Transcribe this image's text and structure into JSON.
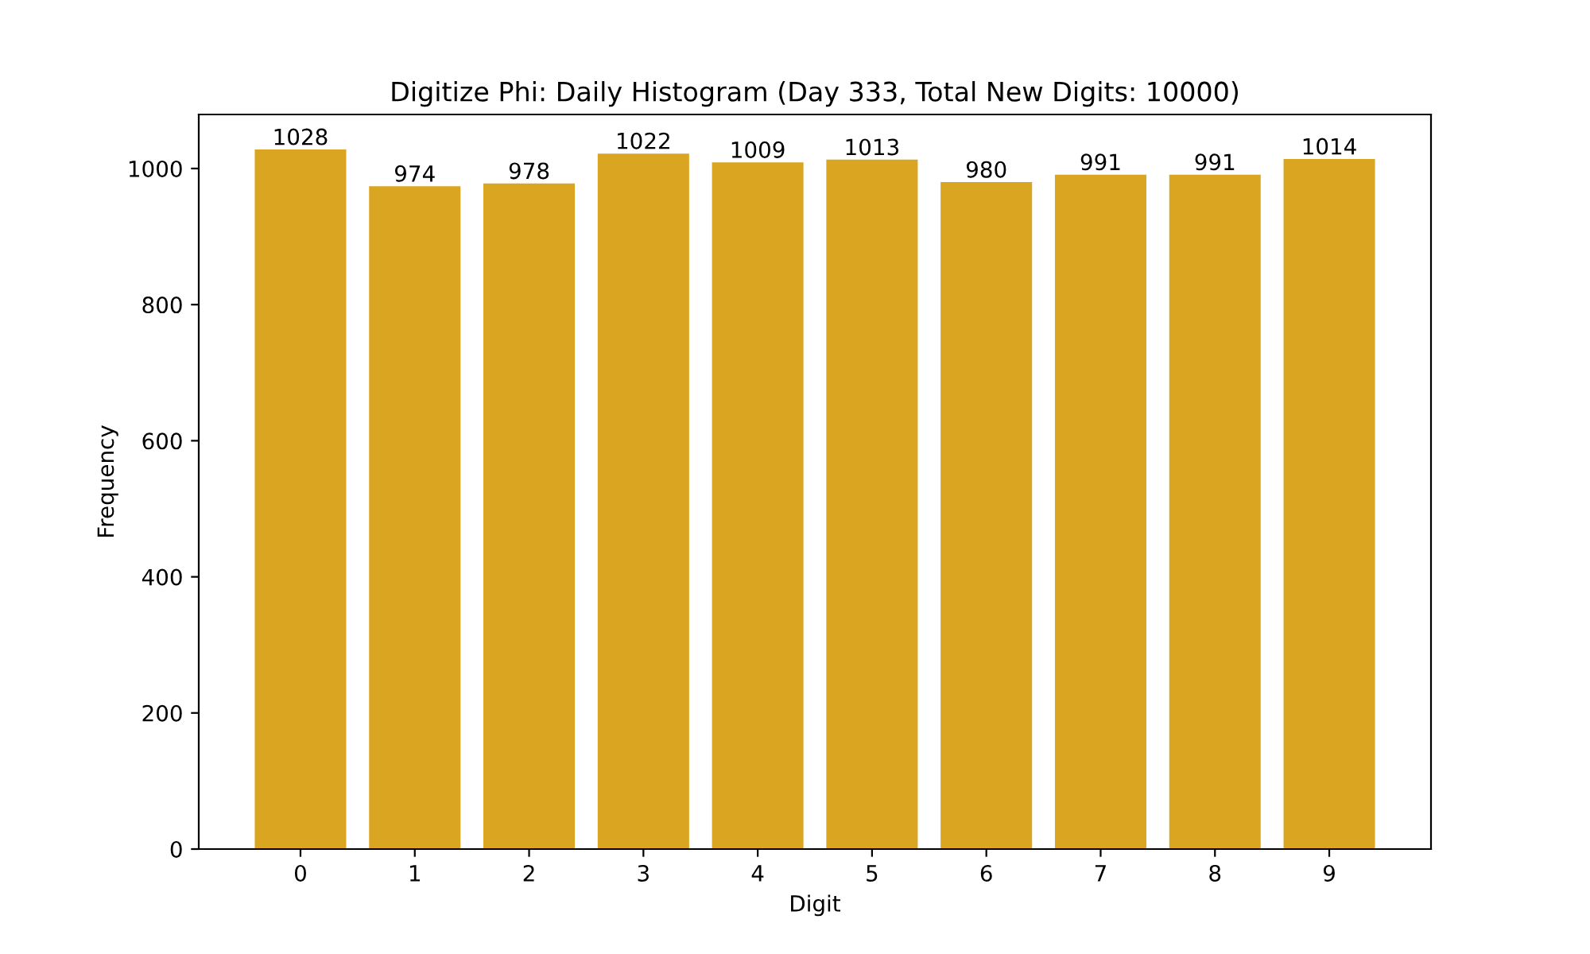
{
  "chart_data": {
    "type": "bar",
    "title": "Digitize Phi: Daily Histogram (Day 333, Total New Digits: 10000)",
    "xlabel": "Digit",
    "ylabel": "Frequency",
    "categories": [
      "0",
      "1",
      "2",
      "3",
      "4",
      "5",
      "6",
      "7",
      "8",
      "9"
    ],
    "values": [
      1028,
      974,
      978,
      1022,
      1009,
      1013,
      980,
      991,
      991,
      1014
    ],
    "color": "#daa520",
    "ylim": [
      0,
      1079.4
    ],
    "yticks": [
      0,
      200,
      400,
      600,
      800,
      1000
    ],
    "data_labels": true,
    "grid": false
  }
}
